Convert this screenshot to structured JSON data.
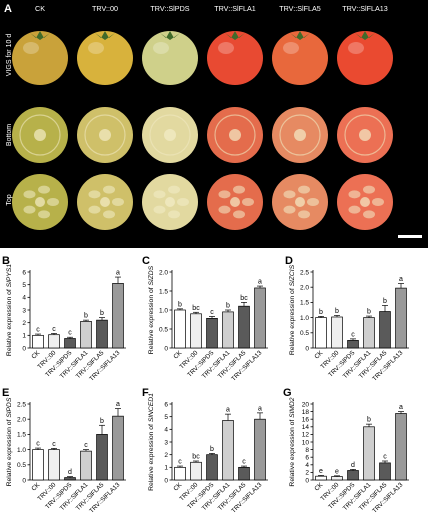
{
  "panel_a": {
    "letter": "A",
    "columns": [
      "CK",
      "TRV::00",
      "TRV::SlPDS",
      "TRV::SlFLA1",
      "TRV::SlFLA5",
      "TRV::SlFLA13"
    ],
    "row_labels": [
      "VIGS for 10 d",
      "Bottom",
      "Top"
    ],
    "fruit_colors": [
      "#c9a23a",
      "#d8b23c",
      "#cfd08a",
      "#e84a32",
      "#e8683c",
      "#ea4a30"
    ],
    "section_colors": [
      "#b7b14a",
      "#cfc069",
      "#e2d9a0",
      "#e46c4c",
      "#e68a62",
      "#ec7054"
    ],
    "background": "#000000"
  },
  "chart_data": [
    {
      "letter": "B",
      "type": "bar",
      "categories": [
        "CK",
        "TRV::00",
        "TRV::SlPDS",
        "TRV::SlFLA1",
        "TRV::SlFLA5",
        "TRV::SlFLA13"
      ],
      "values": [
        1.0,
        1.05,
        0.75,
        2.1,
        2.2,
        5.1
      ],
      "errors": [
        0.1,
        0.1,
        0.1,
        0.1,
        0.2,
        0.5
      ],
      "letters": [
        "c",
        "c",
        "c",
        "b",
        "b",
        "a"
      ],
      "ylabel": "Relative expression of",
      "ylabel_gene": "SlPYS1",
      "ylim": [
        0,
        6
      ],
      "yticks": [
        0,
        1,
        2,
        3,
        4,
        5,
        6
      ]
    },
    {
      "letter": "C",
      "type": "bar",
      "categories": [
        "CK",
        "TRV::00",
        "TRV::SlPDS",
        "TRV::SlFLA1",
        "TRV::SlFLA5",
        "TRV::SlFLA13"
      ],
      "values": [
        1.0,
        0.9,
        0.78,
        0.95,
        1.1,
        1.58
      ],
      "errors": [
        0.03,
        0.04,
        0.05,
        0.05,
        0.1,
        0.05
      ],
      "letters": [
        "b",
        "bc",
        "c",
        "b",
        "bc",
        "a"
      ],
      "ylabel": "Relative expression of",
      "ylabel_gene": "SlZDS",
      "ylim": [
        0,
        2.0
      ],
      "yticks": [
        0,
        0.5,
        1.0,
        1.5,
        2.0
      ]
    },
    {
      "letter": "D",
      "type": "bar",
      "categories": [
        "CK",
        "TRV::00",
        "TRV::SlPDS",
        "TRV::SlFLA1",
        "TRV::SlFLA5",
        "TRV::SlFLA13"
      ],
      "values": [
        1.0,
        1.02,
        0.25,
        1.0,
        1.2,
        1.97
      ],
      "errors": [
        0.04,
        0.05,
        0.05,
        0.05,
        0.2,
        0.15
      ],
      "letters": [
        "b",
        "b",
        "c",
        "b",
        "b",
        "a"
      ],
      "ylabel": "Relative expression of",
      "ylabel_gene": "SlZCIS",
      "ylim": [
        0,
        2.5
      ],
      "yticks": [
        0,
        0.5,
        1.0,
        1.5,
        2.0,
        2.5
      ]
    },
    {
      "letter": "E",
      "type": "bar",
      "categories": [
        "CK",
        "TRV::00",
        "TRV::SlPDS",
        "TRV::SlFLA1",
        "TRV::SlFLA5",
        "TRV::SlFLA13"
      ],
      "values": [
        1.0,
        1.0,
        0.08,
        0.95,
        1.5,
        2.1
      ],
      "errors": [
        0.05,
        0.04,
        0.03,
        0.05,
        0.3,
        0.25
      ],
      "letters": [
        "c",
        "c",
        "d",
        "c",
        "b",
        "a"
      ],
      "ylabel": "Relative expression of",
      "ylabel_gene": "SlPDS",
      "ylim": [
        0,
        2.5
      ],
      "yticks": [
        0,
        0.5,
        1.0,
        1.5,
        2.0,
        2.5
      ]
    },
    {
      "letter": "F",
      "type": "bar",
      "categories": [
        "CK",
        "TRV::00",
        "TRV::SlPDS",
        "TRV::SlFLA1",
        "TRV::SlFLA5",
        "TRV::SlFLA13"
      ],
      "values": [
        1.0,
        1.4,
        2.0,
        4.7,
        1.0,
        4.8
      ],
      "errors": [
        0.1,
        0.1,
        0.1,
        0.5,
        0.1,
        0.5
      ],
      "letters": [
        "c",
        "bc",
        "b",
        "a",
        "c",
        "a"
      ],
      "ylabel": "Relative expression of",
      "ylabel_gene": "SlNCED1",
      "ylim": [
        0,
        6
      ],
      "yticks": [
        0,
        1,
        2,
        3,
        4,
        5,
        6
      ]
    },
    {
      "letter": "G",
      "type": "bar",
      "categories": [
        "CK",
        "TRV::00",
        "TRV::SlPDS",
        "TRV::SlFLA1",
        "TRV::SlFLA5",
        "TRV::SlFLA13"
      ],
      "values": [
        1.0,
        0.9,
        2.5,
        14.0,
        4.5,
        17.5
      ],
      "errors": [
        0.2,
        0.2,
        0.3,
        0.7,
        0.5,
        0.5
      ],
      "letters": [
        "e",
        "e",
        "d",
        "b",
        "c",
        "a"
      ],
      "ylabel": "Relative expression of",
      "ylabel_gene": "SlMD2",
      "ylim": [
        0,
        20
      ],
      "yticks": [
        0,
        2,
        4,
        6,
        8,
        10,
        12,
        14,
        16,
        18,
        20
      ]
    }
  ],
  "bar_fills": [
    "#ffffff",
    "#efefef",
    "#5a5a5a",
    "#cfcfcf",
    "#5a5a5a",
    "#9a9a9a"
  ]
}
